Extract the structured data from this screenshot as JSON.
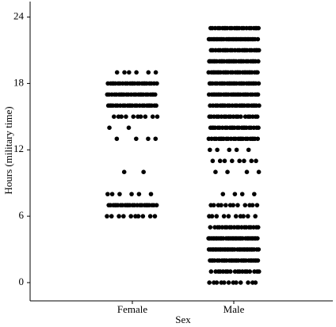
{
  "chart_data": {
    "type": "strip",
    "ylabel": "Hours (military time)",
    "xlabel": "Sex",
    "categories": [
      "Female",
      "Male"
    ],
    "ylim": [
      -1.65,
      25.4
    ],
    "yticks": [
      0,
      6,
      12,
      18,
      24
    ],
    "color": "#000000",
    "values": [
      [
        6,
        6,
        6,
        6,
        6,
        6,
        6,
        6,
        6,
        6,
        7,
        7,
        7,
        7,
        7,
        7,
        7,
        7,
        7,
        7,
        7,
        7,
        7,
        7,
        7,
        7,
        7,
        7,
        7,
        7,
        7,
        7,
        7,
        7,
        8,
        8,
        8,
        8,
        8,
        8,
        10,
        10,
        13,
        13,
        13,
        13,
        14,
        14,
        15,
        15,
        15,
        15,
        15,
        15,
        15,
        15,
        15,
        15,
        16,
        16,
        16,
        16,
        16,
        16,
        16,
        16,
        16,
        16,
        16,
        16,
        16,
        16,
        16,
        16,
        16,
        16,
        16,
        16,
        16,
        16,
        16,
        16,
        17,
        17,
        17,
        17,
        17,
        17,
        17,
        17,
        17,
        17,
        17,
        17,
        17,
        17,
        17,
        17,
        17,
        17,
        17,
        17,
        17,
        17,
        17,
        17,
        18,
        18,
        18,
        18,
        18,
        18,
        18,
        18,
        18,
        18,
        18,
        18,
        18,
        18,
        18,
        18,
        18,
        18,
        18,
        18,
        18,
        18,
        18,
        18,
        19,
        19,
        19,
        19,
        19,
        19
      ],
      [
        0,
        0,
        0,
        0,
        0,
        0,
        0,
        0,
        0,
        0,
        0,
        0,
        1,
        1,
        1,
        1,
        1,
        1,
        1,
        1,
        1,
        1,
        1,
        1,
        1,
        1,
        1,
        1,
        1,
        1,
        2,
        2,
        2,
        2,
        2,
        2,
        2,
        2,
        2,
        2,
        2,
        2,
        2,
        2,
        2,
        2,
        2,
        2,
        2,
        2,
        2,
        2,
        2,
        2,
        2,
        2,
        2,
        2,
        3,
        3,
        3,
        3,
        3,
        3,
        3,
        3,
        3,
        3,
        3,
        3,
        3,
        3,
        3,
        3,
        3,
        3,
        3,
        3,
        3,
        3,
        3,
        3,
        3,
        3,
        3,
        3,
        3,
        3,
        3,
        3,
        4,
        4,
        4,
        4,
        4,
        4,
        4,
        4,
        4,
        4,
        4,
        4,
        4,
        4,
        4,
        4,
        4,
        4,
        4,
        4,
        4,
        4,
        4,
        4,
        4,
        4,
        4,
        4,
        4,
        4,
        4,
        4,
        5,
        5,
        5,
        5,
        5,
        5,
        5,
        5,
        5,
        5,
        5,
        5,
        5,
        5,
        5,
        5,
        5,
        5,
        5,
        5,
        6,
        6,
        6,
        6,
        6,
        6,
        6,
        6,
        6,
        6,
        7,
        7,
        7,
        7,
        7,
        7,
        7,
        7,
        7,
        7,
        7,
        7,
        8,
        8,
        8,
        8,
        10,
        10,
        10,
        10,
        11,
        11,
        11,
        11,
        11,
        11,
        11,
        11,
        12,
        12,
        12,
        12,
        12,
        13,
        13,
        13,
        13,
        13,
        13,
        13,
        13,
        13,
        13,
        13,
        13,
        13,
        13,
        13,
        13,
        13,
        13,
        13,
        13,
        13,
        13,
        13,
        13,
        14,
        14,
        14,
        14,
        14,
        14,
        14,
        14,
        14,
        14,
        14,
        14,
        14,
        14,
        14,
        14,
        14,
        14,
        14,
        14,
        14,
        14,
        14,
        14,
        15,
        15,
        15,
        15,
        15,
        15,
        15,
        15,
        15,
        15,
        15,
        15,
        15,
        15,
        15,
        15,
        15,
        15,
        15,
        15,
        16,
        16,
        16,
        16,
        16,
        16,
        16,
        16,
        16,
        16,
        16,
        16,
        16,
        16,
        16,
        16,
        16,
        16,
        16,
        16,
        16,
        16,
        16,
        16,
        17,
        17,
        17,
        17,
        17,
        17,
        17,
        17,
        17,
        17,
        17,
        17,
        17,
        17,
        17,
        17,
        17,
        17,
        17,
        17,
        17,
        17,
        17,
        17,
        17,
        17,
        17,
        17,
        18,
        18,
        18,
        18,
        18,
        18,
        18,
        18,
        18,
        18,
        18,
        18,
        18,
        18,
        18,
        18,
        18,
        18,
        18,
        18,
        18,
        18,
        18,
        18,
        18,
        18,
        18,
        18,
        19,
        19,
        19,
        19,
        19,
        19,
        19,
        19,
        19,
        19,
        19,
        19,
        19,
        19,
        19,
        19,
        19,
        19,
        19,
        19,
        19,
        19,
        19,
        19,
        19,
        19,
        19,
        19,
        20,
        20,
        20,
        20,
        20,
        20,
        20,
        20,
        20,
        20,
        20,
        20,
        20,
        20,
        20,
        20,
        20,
        20,
        20,
        20,
        20,
        20,
        20,
        20,
        20,
        20,
        20,
        20,
        21,
        21,
        21,
        21,
        21,
        21,
        21,
        21,
        21,
        21,
        21,
        21,
        21,
        21,
        21,
        21,
        21,
        21,
        21,
        21,
        21,
        21,
        21,
        21,
        22,
        22,
        22,
        22,
        22,
        22,
        22,
        22,
        22,
        22,
        22,
        22,
        22,
        22,
        22,
        22,
        22,
        22,
        22,
        22,
        22,
        22,
        22,
        22,
        22,
        22,
        22,
        22,
        22,
        22,
        22,
        22,
        23,
        23,
        23,
        23,
        23,
        23,
        23,
        23,
        23,
        23,
        23,
        23,
        23,
        23,
        23,
        23,
        23,
        23,
        23,
        23,
        23,
        23,
        23,
        23
      ]
    ]
  }
}
